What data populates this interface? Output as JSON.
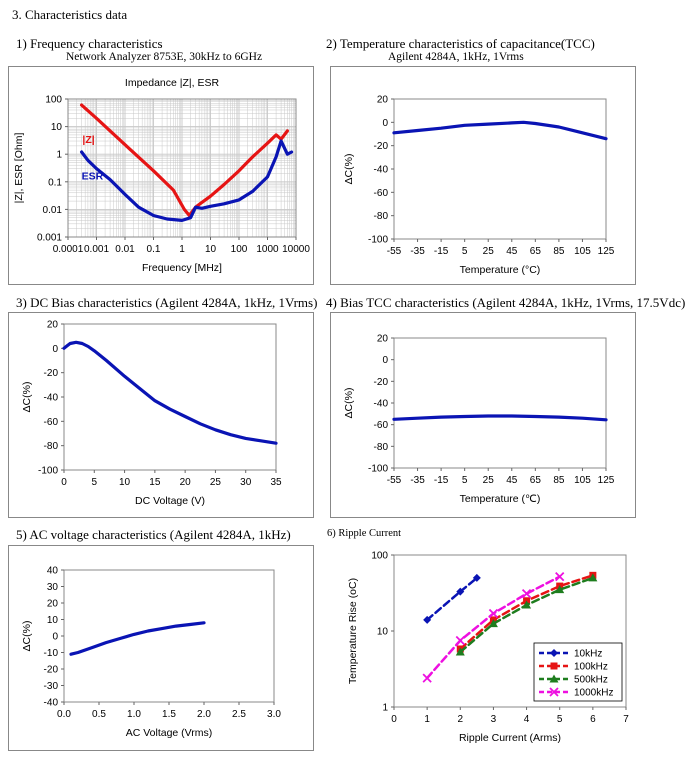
{
  "section_title": "3. Characteristics data",
  "colors": {
    "blue": "#0a14b4",
    "red": "#e61414",
    "green": "#1e7d1e",
    "magenta": "#ee10e0",
    "frame": "#888888",
    "grid": "#c8c8c8"
  },
  "panels": {
    "p1": {
      "heading": "1) Frequency characteristics",
      "subheading": "Network Analyzer 8753E, 30kHz to 6GHz"
    },
    "p2": {
      "heading": "2) Temperature characteristics of capacitance(TCC)",
      "subheading": "Agilent 4284A, 1kHz, 1Vrms"
    },
    "p3": {
      "heading": "3) DC Bias characteristics (Agilent 4284A, 1kHz, 1Vrms)"
    },
    "p4": {
      "heading": "4) Bias TCC characteristics (Agilent 4284A, 1kHz, 1Vrms, 17.5Vdc)"
    },
    "p5": {
      "heading": "5) AC voltage characteristics (Agilent 4284A, 1kHz)"
    },
    "p6": {
      "heading": "6) Ripple Current"
    }
  },
  "chart_data": [
    {
      "id": "freq",
      "type": "line",
      "title": "Impedance |Z|,  ESR",
      "xlabel": "Frequency [MHz]",
      "ylabel": "|Z|, ESR [Ohm]",
      "xscale": "log",
      "yscale": "log",
      "xlim": [
        0.0001,
        10000
      ],
      "ylim": [
        0.001,
        100
      ],
      "xticks": [
        "0.0001",
        "0.001",
        "0.01",
        "0.1",
        "1",
        "10",
        "100",
        "1000",
        "10000"
      ],
      "yticks": [
        "0.001",
        "0.01",
        "0.1",
        "1",
        "10",
        "100"
      ],
      "grid": true,
      "series": [
        {
          "name": "|Z|",
          "color": "#e61414",
          "x": [
            0.0003,
            0.001,
            0.01,
            0.1,
            0.5,
            1.2,
            1.8,
            3,
            5,
            10,
            30,
            100,
            300,
            1000,
            2000,
            3000,
            5000
          ],
          "y": [
            60,
            20,
            2.2,
            0.25,
            0.05,
            0.01,
            0.006,
            0.012,
            0.018,
            0.03,
            0.08,
            0.25,
            0.8,
            2.5,
            5,
            3.5,
            7
          ]
        },
        {
          "name": "ESR",
          "color": "#0a14b4",
          "x": [
            0.0003,
            0.0005,
            0.001,
            0.003,
            0.01,
            0.03,
            0.1,
            0.3,
            1,
            2,
            3,
            5,
            10,
            30,
            100,
            300,
            1000,
            2000,
            3000,
            5000,
            7000
          ],
          "y": [
            1.2,
            0.6,
            0.3,
            0.12,
            0.035,
            0.012,
            0.006,
            0.0045,
            0.004,
            0.005,
            0.012,
            0.011,
            0.013,
            0.016,
            0.022,
            0.045,
            0.15,
            0.8,
            3,
            1,
            1.2
          ]
        }
      ]
    },
    {
      "id": "tcc",
      "type": "line",
      "xlabel": "Temperature (°C)",
      "ylabel": "ΔC(%)",
      "xlim": [
        -55,
        125
      ],
      "ylim": [
        -100,
        20
      ],
      "xticks": [
        "-55",
        "-35",
        "-15",
        "5",
        "25",
        "45",
        "65",
        "85",
        "105",
        "125"
      ],
      "yticks": [
        "20",
        "0",
        "-20",
        "-40",
        "-60",
        "-80",
        "-100"
      ],
      "grid": false,
      "series": [
        {
          "color": "#0a14b4",
          "x": [
            -55,
            -35,
            -15,
            5,
            25,
            45,
            55,
            65,
            85,
            105,
            125
          ],
          "y": [
            -9,
            -7,
            -5,
            -2.5,
            -1.5,
            -0.5,
            0,
            -1,
            -4,
            -9,
            -14
          ]
        }
      ]
    },
    {
      "id": "dcbias",
      "type": "line",
      "xlabel": "DC Voltage (V)",
      "ylabel": "ΔC(%)",
      "xlim": [
        0,
        35
      ],
      "ylim": [
        -100,
        20
      ],
      "xticks": [
        "0",
        "5",
        "10",
        "15",
        "20",
        "25",
        "30",
        "35"
      ],
      "yticks": [
        "20",
        "0",
        "-20",
        "-40",
        "-60",
        "-80",
        "-100"
      ],
      "grid": false,
      "series": [
        {
          "color": "#0a14b4",
          "x": [
            0,
            0.5,
            1,
            2,
            3,
            4,
            5,
            7,
            10,
            12.5,
            15,
            17.5,
            20,
            22.5,
            25,
            27.5,
            30,
            32.5,
            35
          ],
          "y": [
            0,
            2,
            4,
            5,
            4,
            1.5,
            -2,
            -10,
            -23,
            -33,
            -43,
            -50,
            -56,
            -62,
            -67,
            -71,
            -74,
            -76,
            -78
          ]
        }
      ]
    },
    {
      "id": "biastcc",
      "type": "line",
      "xlabel": "Temperature (℃)",
      "ylabel": "ΔC(%)",
      "xlim": [
        -55,
        125
      ],
      "ylim": [
        -100,
        20
      ],
      "xticks": [
        "-55",
        "-35",
        "-15",
        "5",
        "25",
        "45",
        "65",
        "85",
        "105",
        "125"
      ],
      "yticks": [
        "20",
        "0",
        "-20",
        "-40",
        "-60",
        "-80",
        "-100"
      ],
      "grid": false,
      "series": [
        {
          "color": "#0a14b4",
          "x": [
            -55,
            -35,
            -15,
            5,
            25,
            45,
            65,
            85,
            105,
            125
          ],
          "y": [
            -55,
            -54,
            -53,
            -52.5,
            -52,
            -52,
            -52.5,
            -53,
            -54,
            -55.5
          ]
        }
      ]
    },
    {
      "id": "acvolt",
      "type": "line",
      "xlabel": "AC Voltage (Vrms)",
      "ylabel": "ΔC(%)",
      "xlim": [
        0,
        3
      ],
      "ylim": [
        -40,
        40
      ],
      "xticks": [
        "0.0",
        "0.5",
        "1.0",
        "1.5",
        "2.0",
        "2.5",
        "3.0"
      ],
      "yticks": [
        "40",
        "30",
        "20",
        "10",
        "0",
        "-10",
        "-20",
        "-30",
        "-40"
      ],
      "grid": false,
      "series": [
        {
          "color": "#0a14b4",
          "x": [
            0.1,
            0.2,
            0.4,
            0.6,
            0.8,
            1.0,
            1.2,
            1.4,
            1.6,
            1.8,
            2.0
          ],
          "y": [
            -11,
            -10,
            -7,
            -4,
            -1.5,
            1,
            3,
            4.5,
            6,
            7,
            8
          ]
        }
      ]
    },
    {
      "id": "ripple",
      "type": "line",
      "xlabel": "Ripple Current (Arms)",
      "ylabel": "Temperature Rise (oC)",
      "yscale": "log",
      "xlim": [
        0,
        7
      ],
      "ylim": [
        1,
        100
      ],
      "xticks": [
        "0",
        "1",
        "2",
        "3",
        "4",
        "5",
        "6",
        "7"
      ],
      "yticks": [
        "1",
        "10",
        "100"
      ],
      "grid": false,
      "legend": "bottom-right",
      "series": [
        {
          "name": "10kHz",
          "color": "#0a14b4",
          "marker": "diamond",
          "x": [
            1,
            2,
            2.5
          ],
          "y": [
            14,
            33,
            50
          ]
        },
        {
          "name": "100kHz",
          "color": "#e61414",
          "marker": "square",
          "x": [
            2,
            3,
            4,
            5,
            6
          ],
          "y": [
            5.8,
            14,
            25,
            39,
            54
          ]
        },
        {
          "name": "500kHz",
          "color": "#1e7d1e",
          "marker": "triangle",
          "x": [
            2,
            3,
            4,
            5,
            6
          ],
          "y": [
            5.3,
            12.5,
            22,
            35,
            50
          ]
        },
        {
          "name": "1000kHz",
          "color": "#ee10e0",
          "marker": "x",
          "x": [
            1,
            2,
            3,
            4,
            5
          ],
          "y": [
            2.4,
            7.5,
            17,
            31,
            52
          ]
        }
      ]
    }
  ]
}
